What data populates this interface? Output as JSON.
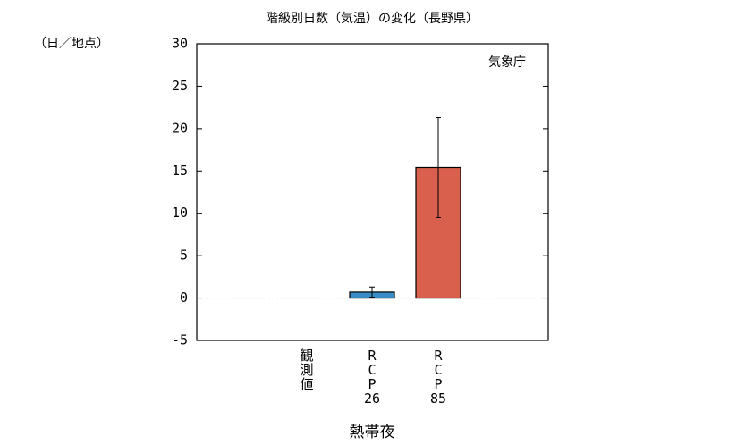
{
  "chart_data": {
    "type": "bar",
    "title": "階級別日数（気温）の変化（長野県）",
    "y_label": "（日／地点）",
    "x_label": "熱帯夜",
    "annotation": "気象庁",
    "categories": [
      "観測値",
      "RCP26",
      "RCP85"
    ],
    "values": [
      0,
      0.7,
      15.4
    ],
    "errors": [
      null,
      0.6,
      5.9
    ],
    "colors": [
      "#000000",
      "#3a8cc6",
      "#d9604c"
    ],
    "ylim": [
      -5,
      30
    ],
    "yticks": [
      -5,
      0,
      5,
      10,
      15,
      20,
      25,
      30
    ]
  }
}
